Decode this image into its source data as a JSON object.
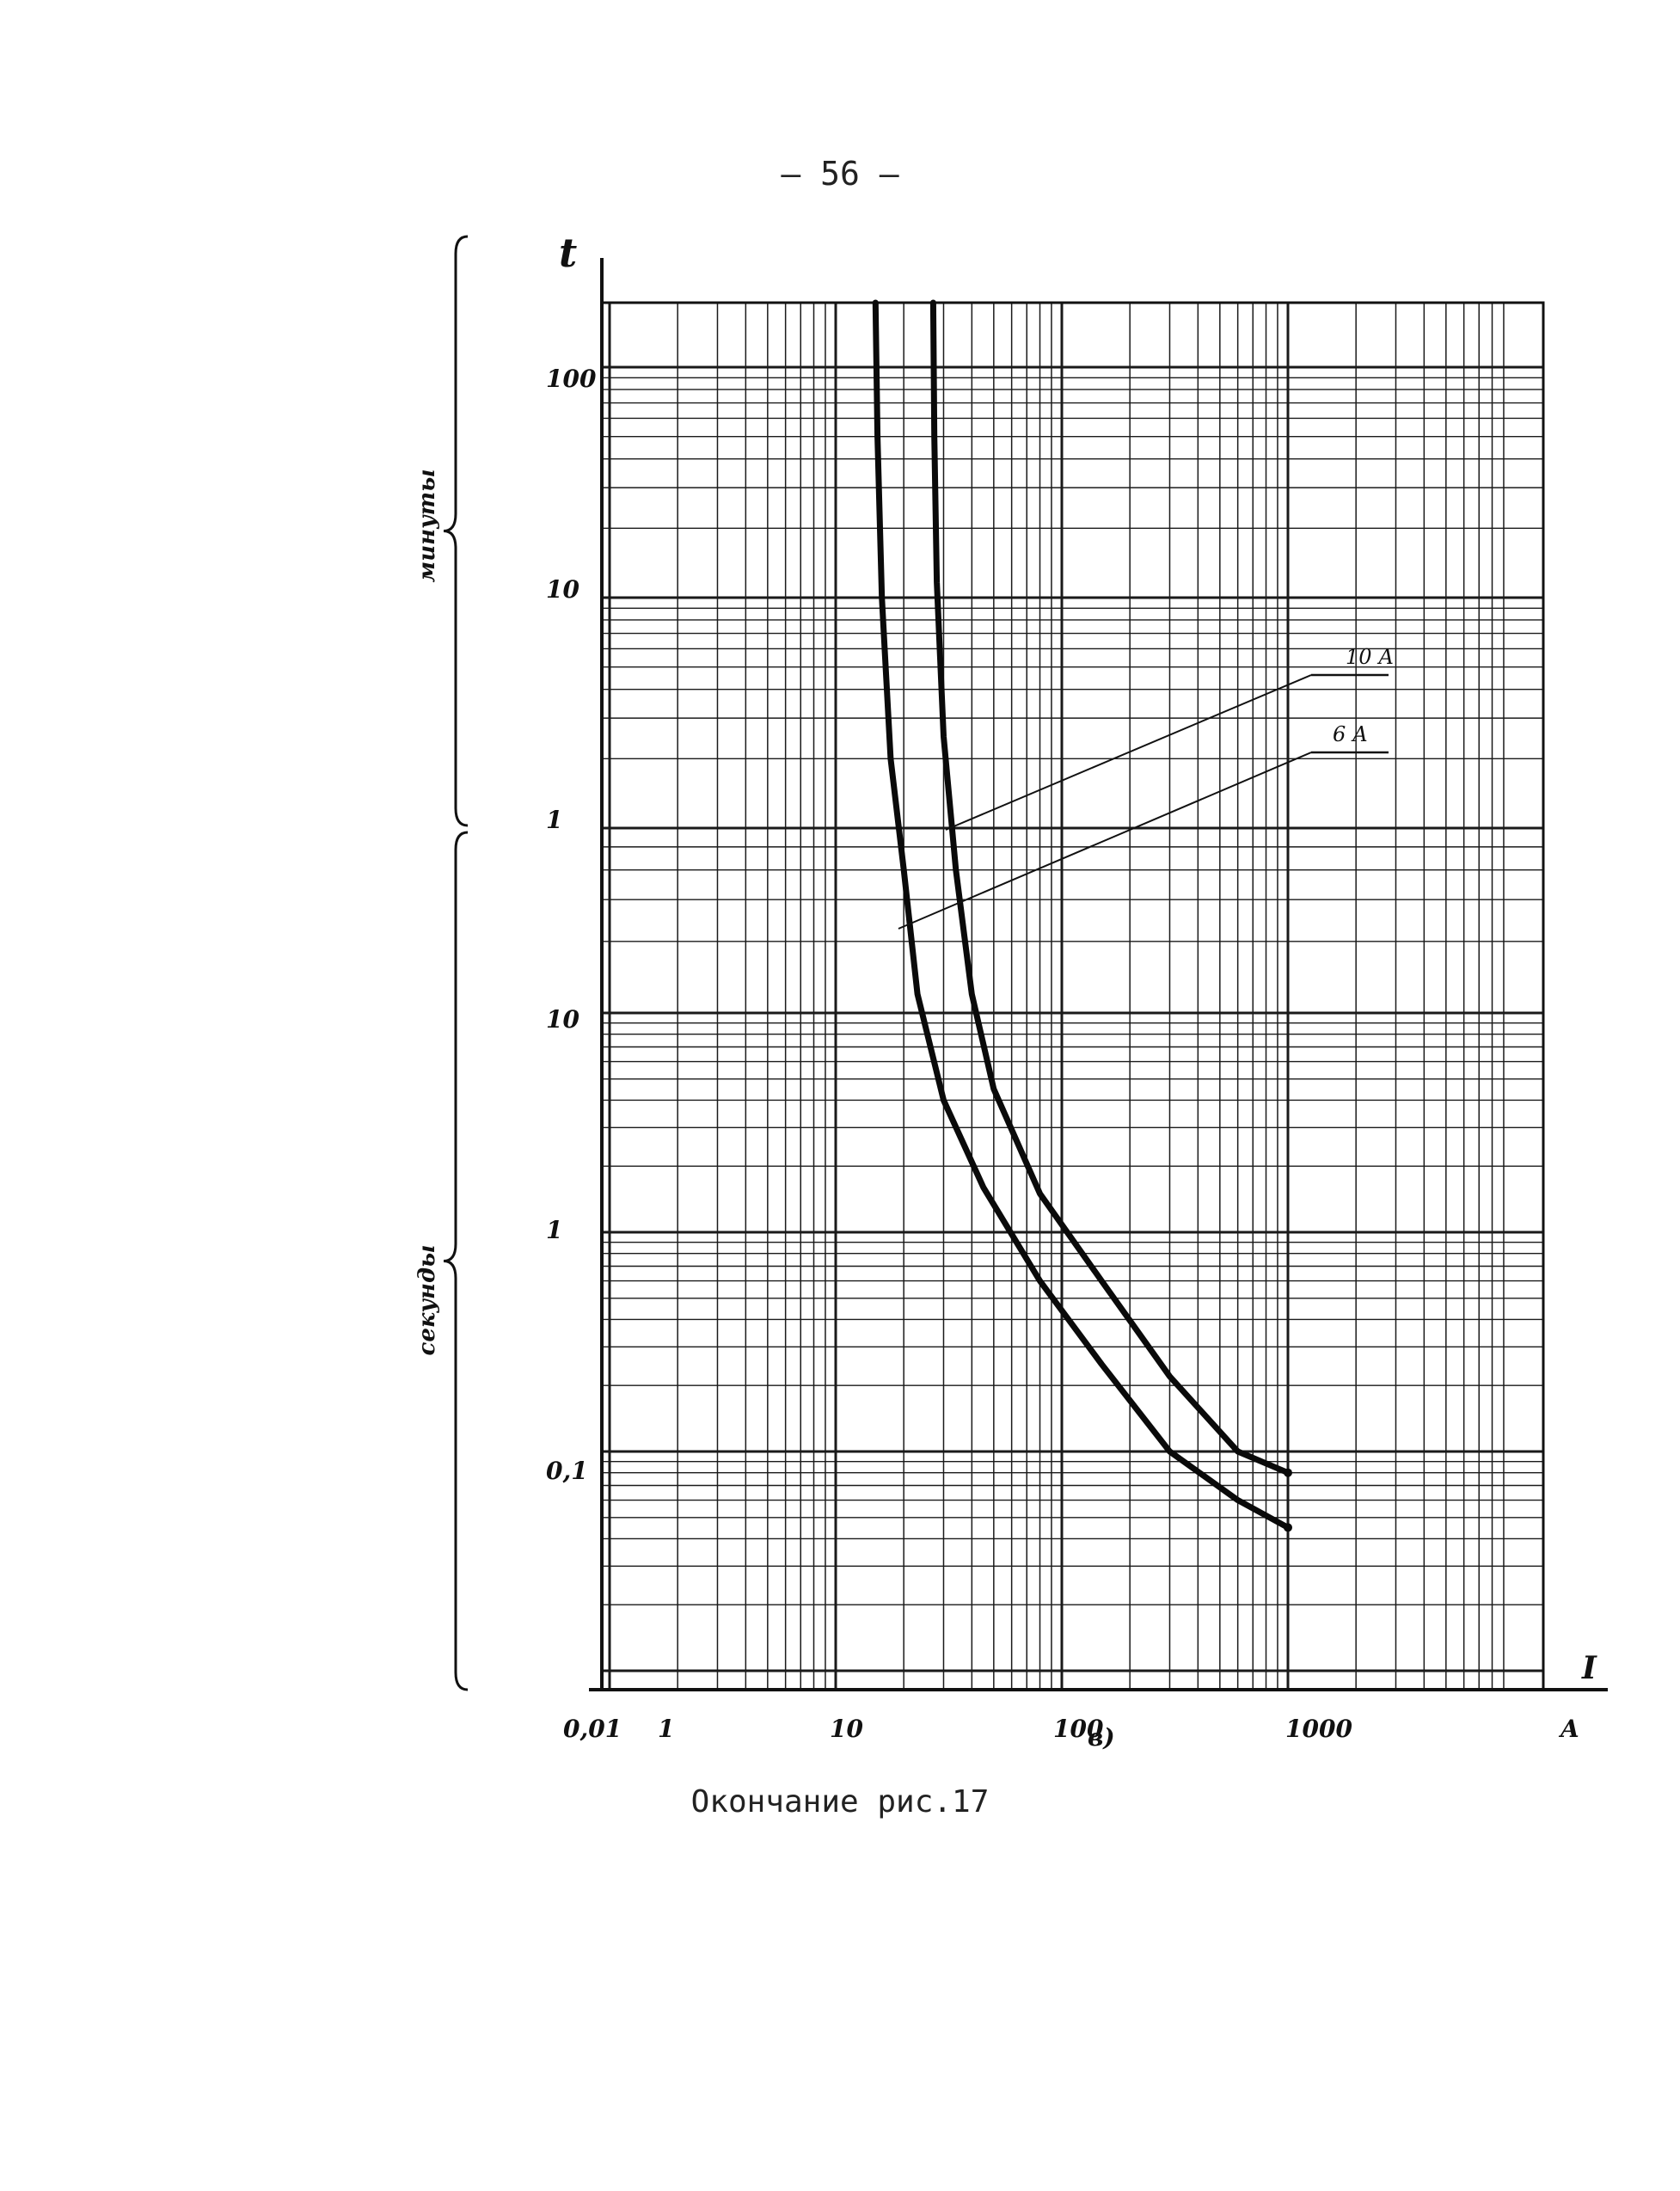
{
  "page": {
    "number": "– 56 –",
    "caption": "Окончание рис.17"
  },
  "chart_data": {
    "type": "line",
    "xlabel": "I",
    "ylabel": "t",
    "x_unit": "A",
    "panel_label": "в)",
    "x_scale": "log",
    "xlim": [
      0.01,
      10000
    ],
    "x_tick_labels": [
      "0,01",
      "1",
      "10",
      "100",
      "1000",
      "A"
    ],
    "y_scale": "log",
    "y_ranges": [
      {
        "label": "минуты",
        "tick_labels": [
          "100",
          "10",
          "1"
        ]
      },
      {
        "label": "секунды",
        "tick_labels": [
          "10",
          "1",
          "0,1"
        ]
      }
    ],
    "grid": true,
    "series": [
      {
        "name": "6 А",
        "values_seconds": [
          {
            "x": 15,
            "y": 18000
          },
          {
            "x": 15.3,
            "y": 3000
          },
          {
            "x": 16,
            "y": 600
          },
          {
            "x": 17.5,
            "y": 120
          },
          {
            "x": 20,
            "y": 40
          },
          {
            "x": 23,
            "y": 12
          },
          {
            "x": 30,
            "y": 4
          },
          {
            "x": 45,
            "y": 1.6
          },
          {
            "x": 80,
            "y": 0.6
          },
          {
            "x": 150,
            "y": 0.25
          },
          {
            "x": 300,
            "y": 0.1
          },
          {
            "x": 600,
            "y": 0.06
          },
          {
            "x": 1000,
            "y": 0.045
          }
        ]
      },
      {
        "name": "10 А",
        "values_seconds": [
          {
            "x": 27,
            "y": 18000
          },
          {
            "x": 27.3,
            "y": 3000
          },
          {
            "x": 28,
            "y": 700
          },
          {
            "x": 30,
            "y": 150
          },
          {
            "x": 34,
            "y": 40
          },
          {
            "x": 40,
            "y": 12
          },
          {
            "x": 50,
            "y": 4.5
          },
          {
            "x": 80,
            "y": 1.5
          },
          {
            "x": 150,
            "y": 0.6
          },
          {
            "x": 300,
            "y": 0.22
          },
          {
            "x": 600,
            "y": 0.1
          },
          {
            "x": 1000,
            "y": 0.08
          }
        ]
      }
    ]
  }
}
